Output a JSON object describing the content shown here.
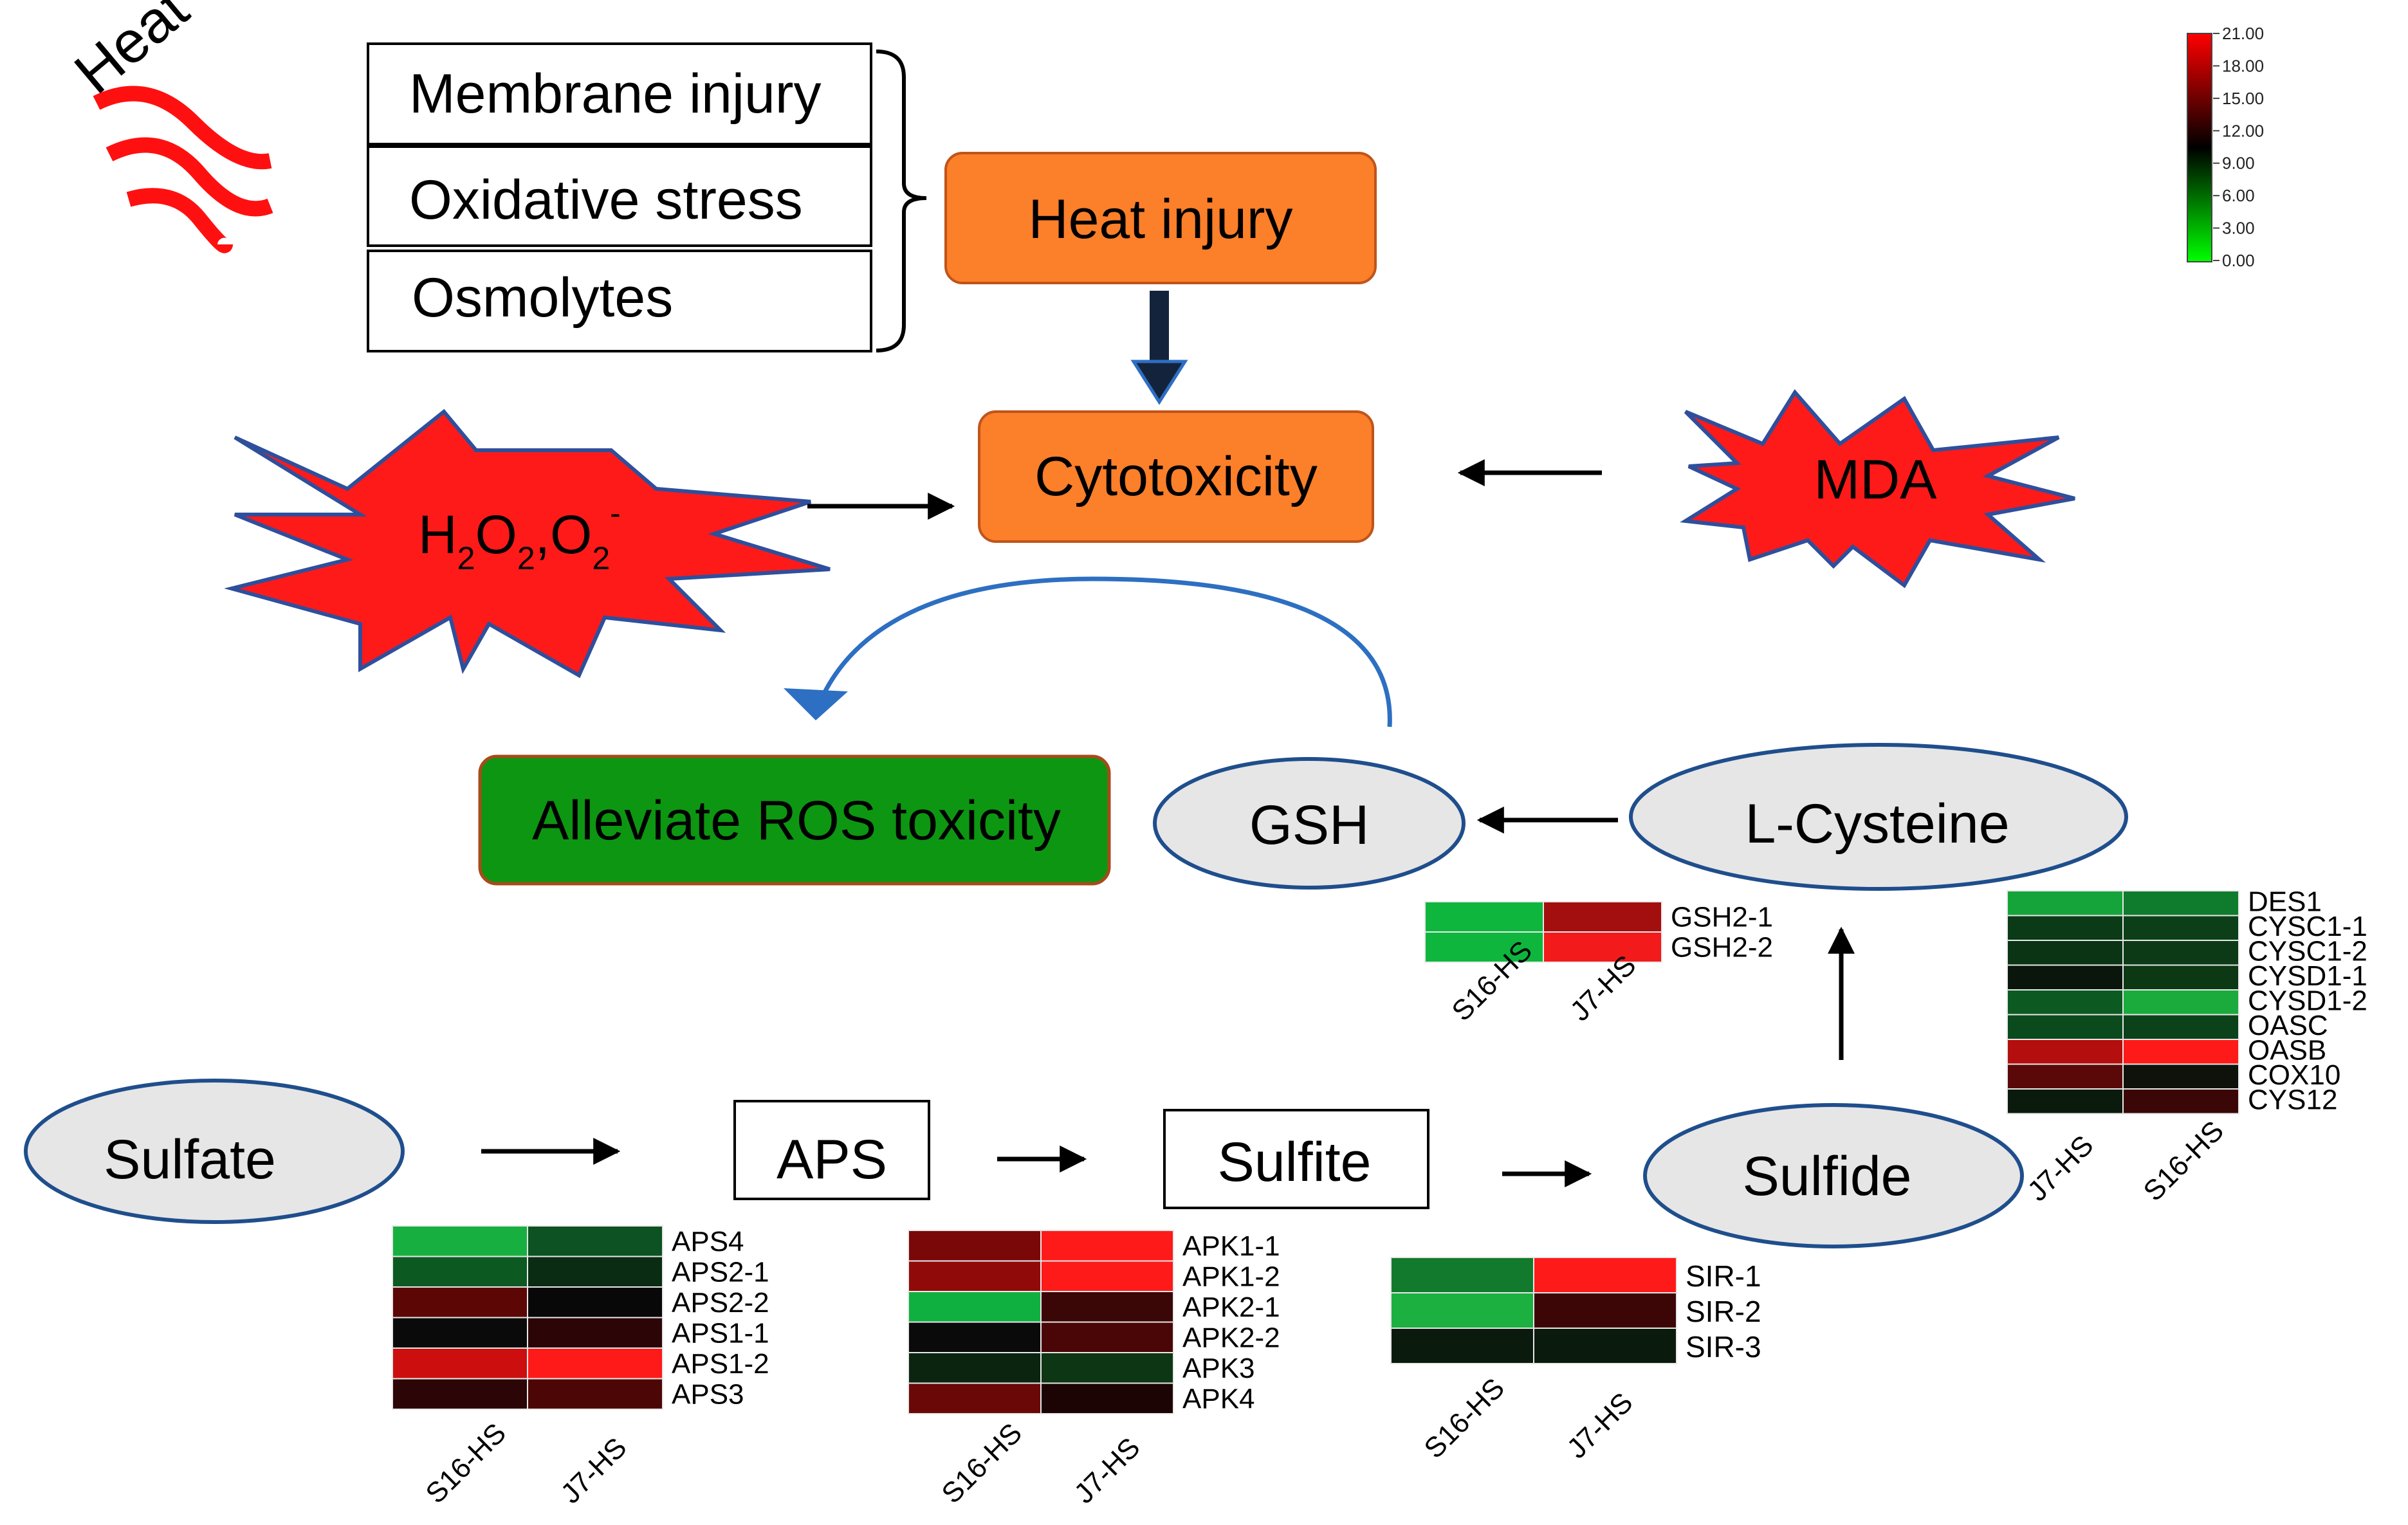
{
  "heat_label": "Heat",
  "stress_factors": [
    "Membrane injury",
    "Oxidative stress",
    "Osmolytes"
  ],
  "nodes": {
    "heat_injury": "Heat injury",
    "cytotoxicity": "Cytotoxicity",
    "ros_h2o2": "H",
    "ros_sub1": "2",
    "ros_o2a": "O",
    "ros_sub2": "2",
    "ros_comma": ",O",
    "ros_sub3": "2",
    "ros_sup": "-",
    "mda": "MDA",
    "alleviate": "Alleviate ROS toxicity",
    "gsh": "GSH",
    "l_cysteine": "L-Cysteine",
    "sulfate": "Sulfate",
    "aps": "APS",
    "sulfite": "Sulfite",
    "sulfide": "Sulfide"
  },
  "colors": {
    "orange_box": "#fc7f2a",
    "green_box": "#0d9612",
    "burst_red": "#ff1a1a",
    "burst_outline": "#2e4f9c",
    "ellipse_fill": "#e6e6e6",
    "ellipse_stroke": "#1f4e8c",
    "curve_arrow": "#2d6fc2",
    "heat_wave": "#ff1010"
  },
  "color_scale": {
    "ticks": [
      "21.00",
      "18.00",
      "15.00",
      "12.00",
      "9.00",
      "6.00",
      "3.00",
      "0.00"
    ],
    "max_color": "#ff0000",
    "mid_color": "#000000",
    "min_color": "#00ff00"
  },
  "heatmaps": {
    "gsh": {
      "columns": [
        "S16-HS",
        "J7-HS"
      ],
      "rows": [
        {
          "gene": "GSH2-1",
          "colors": [
            "#0eb63e",
            "#a30e0e"
          ]
        },
        {
          "gene": "GSH2-2",
          "colors": [
            "#0eb63e",
            "#f21a1a"
          ]
        }
      ]
    },
    "cys": {
      "columns": [
        "J7-HS",
        "S16-HS"
      ],
      "rows": [
        {
          "gene": "DES1",
          "colors": [
            "#14a43a",
            "#0f7b2c"
          ]
        },
        {
          "gene": "CYSC1-1",
          "colors": [
            "#0a3a16",
            "#0c3f18"
          ]
        },
        {
          "gene": "CYSC1-2",
          "colors": [
            "#0a3414",
            "#0c3a16"
          ]
        },
        {
          "gene": "CYSD1-1",
          "colors": [
            "#0a160c",
            "#0c3814"
          ]
        },
        {
          "gene": "CYSD1-2",
          "colors": [
            "#0c5a22",
            "#1aab3c"
          ]
        },
        {
          "gene": "OASC",
          "colors": [
            "#0b4a1c",
            "#0b421a"
          ]
        },
        {
          "gene": "OASB",
          "colors": [
            "#b40e0e",
            "#ff1a1a"
          ]
        },
        {
          "gene": "COX10",
          "colors": [
            "#5a0808",
            "#0f120a"
          ]
        },
        {
          "gene": "CYS12",
          "colors": [
            "#0a1a0c",
            "#3a0606"
          ]
        }
      ]
    },
    "aps": {
      "columns": [
        "S16-HS",
        "J7-HS"
      ],
      "rows": [
        {
          "gene": "APS4",
          "colors": [
            "#17b040",
            "#0d5222"
          ]
        },
        {
          "gene": "APS2-1",
          "colors": [
            "#0c5a22",
            "#0a2c12"
          ]
        },
        {
          "gene": "APS2-2",
          "colors": [
            "#5c0606",
            "#080808"
          ]
        },
        {
          "gene": "APS1-1",
          "colors": [
            "#0a0a0a",
            "#2c0606"
          ]
        },
        {
          "gene": "APS1-2",
          "colors": [
            "#cc0e0e",
            "#ff1a1a"
          ]
        },
        {
          "gene": "APS3",
          "colors": [
            "#2c0606",
            "#4c0606"
          ]
        }
      ]
    },
    "apk": {
      "columns": [
        "S16-HS",
        "J7-HS"
      ],
      "rows": [
        {
          "gene": "APK1-1",
          "colors": [
            "#7a0808",
            "#ff1a1a"
          ]
        },
        {
          "gene": "APK1-2",
          "colors": [
            "#900a0a",
            "#ff1a1a"
          ]
        },
        {
          "gene": "APK2-1",
          "colors": [
            "#10b040",
            "#3a0606"
          ]
        },
        {
          "gene": "APK2-2",
          "colors": [
            "#0a0a0a",
            "#4a0606"
          ]
        },
        {
          "gene": "APK3",
          "colors": [
            "#0a2410",
            "#0d3614"
          ]
        },
        {
          "gene": "APK4",
          "colors": [
            "#6a0808",
            "#1c0404"
          ]
        }
      ]
    },
    "sir": {
      "columns": [
        "S16-HS",
        "J7-HS"
      ],
      "rows": [
        {
          "gene": "SIR-1",
          "colors": [
            "#117a2c",
            "#ff1a1a"
          ]
        },
        {
          "gene": "SIR-2",
          "colors": [
            "#1bb040",
            "#3c0606"
          ]
        },
        {
          "gene": "SIR-3",
          "colors": [
            "#0a1a0c",
            "#0a1a0c"
          ]
        }
      ]
    }
  }
}
